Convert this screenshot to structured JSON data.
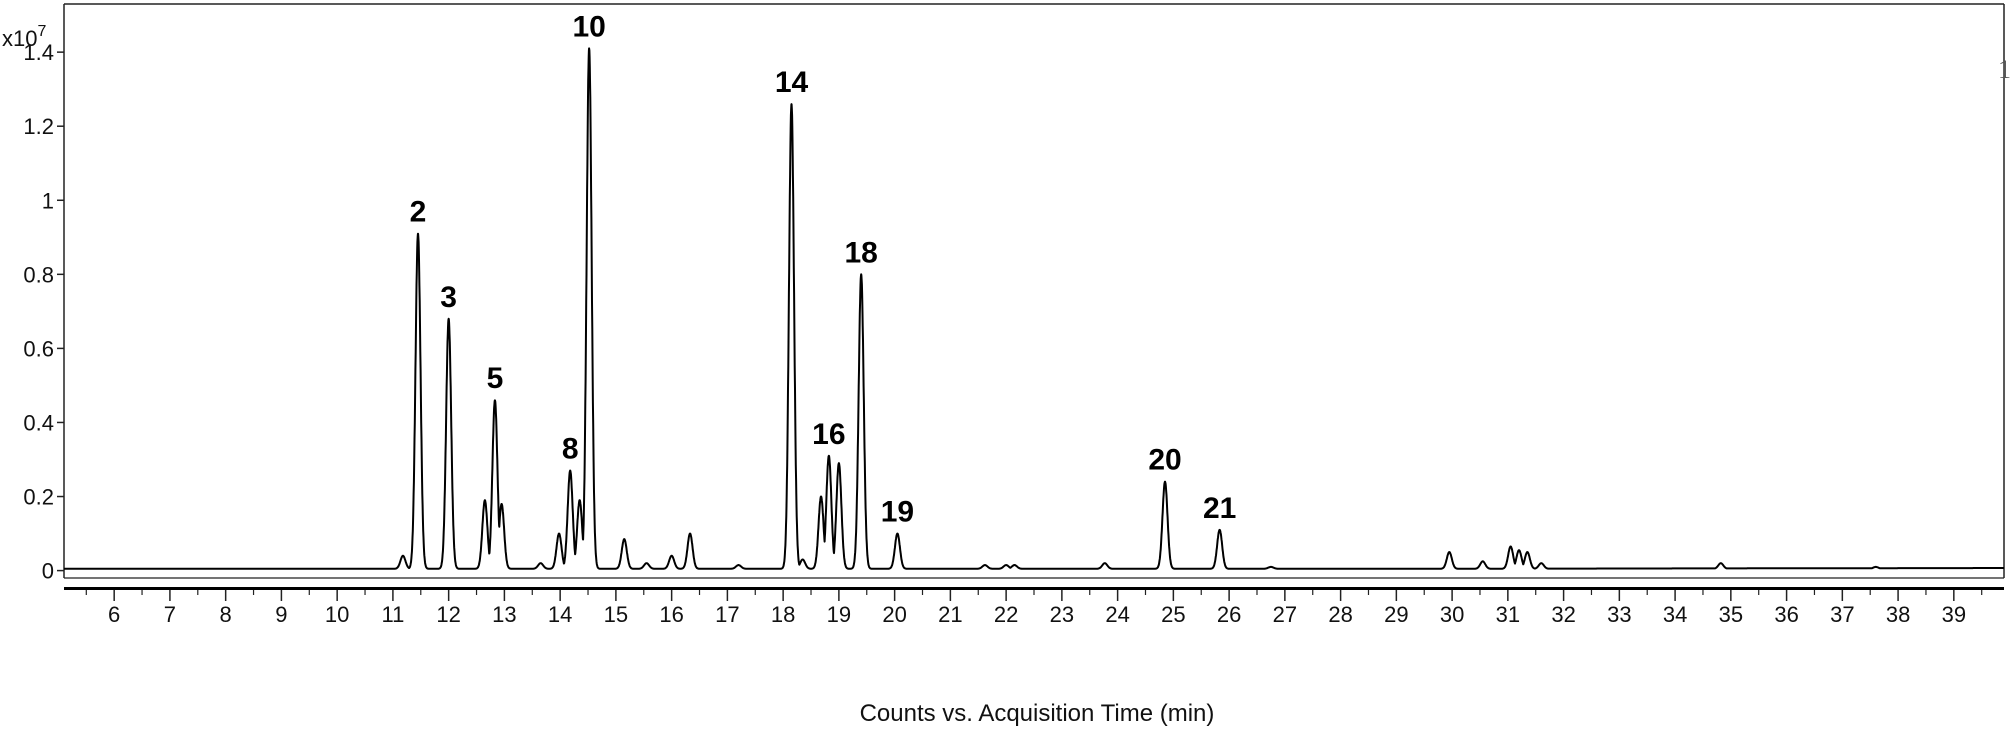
{
  "chart_data": {
    "type": "line",
    "title": "",
    "xlabel": "Counts vs. Acquisition Time (min)",
    "ylabel": "",
    "y_multiplier": "x10",
    "y_multiplier_exp": "7",
    "corner_mark": "1",
    "xlim": [
      5.1,
      39.9
    ],
    "ylim": [
      -0.02,
      1.53
    ],
    "x_ticks": [
      6,
      7,
      8,
      9,
      10,
      11,
      12,
      13,
      14,
      15,
      16,
      17,
      18,
      19,
      20,
      21,
      22,
      23,
      24,
      25,
      26,
      27,
      28,
      29,
      30,
      31,
      32,
      33,
      34,
      35,
      36,
      37,
      38,
      39
    ],
    "y_ticks": [
      {
        "value": 0,
        "label": "0"
      },
      {
        "value": 0.2,
        "label": "0.2"
      },
      {
        "value": 0.4,
        "label": "0.4"
      },
      {
        "value": 0.6,
        "label": "0.6"
      },
      {
        "value": 0.8,
        "label": "0.8"
      },
      {
        "value": 1.0,
        "label": "1"
      },
      {
        "value": 1.2,
        "label": "1.2"
      },
      {
        "value": 1.4,
        "label": "1.4"
      }
    ],
    "baseline": 0.005,
    "series": [
      {
        "peaks": [
          {
            "x": 11.18,
            "y": 0.04
          },
          {
            "x": 11.45,
            "y": 0.91,
            "label": "2"
          },
          {
            "x": 12.0,
            "y": 0.68,
            "label": "3"
          },
          {
            "x": 12.65,
            "y": 0.19
          },
          {
            "x": 12.83,
            "y": 0.46,
            "label": "5"
          },
          {
            "x": 12.95,
            "y": 0.18
          },
          {
            "x": 13.65,
            "y": 0.02
          },
          {
            "x": 13.98,
            "y": 0.1
          },
          {
            "x": 14.18,
            "y": 0.27,
            "label": "8"
          },
          {
            "x": 14.35,
            "y": 0.19
          },
          {
            "x": 14.52,
            "y": 1.41,
            "label": "10"
          },
          {
            "x": 15.15,
            "y": 0.085
          },
          {
            "x": 15.55,
            "y": 0.02
          },
          {
            "x": 16.0,
            "y": 0.04
          },
          {
            "x": 16.33,
            "y": 0.1
          },
          {
            "x": 17.2,
            "y": 0.015
          },
          {
            "x": 18.15,
            "y": 1.26,
            "label": "14"
          },
          {
            "x": 18.35,
            "y": 0.03
          },
          {
            "x": 18.68,
            "y": 0.2
          },
          {
            "x": 18.82,
            "y": 0.31,
            "label": "16"
          },
          {
            "x": 19.0,
            "y": 0.29
          },
          {
            "x": 19.4,
            "y": 0.8,
            "label": "18"
          },
          {
            "x": 20.05,
            "y": 0.1,
            "label": "19"
          },
          {
            "x": 21.62,
            "y": 0.015
          },
          {
            "x": 22.0,
            "y": 0.015
          },
          {
            "x": 22.15,
            "y": 0.015
          },
          {
            "x": 23.77,
            "y": 0.02
          },
          {
            "x": 24.85,
            "y": 0.24,
            "label": "20"
          },
          {
            "x": 25.83,
            "y": 0.11,
            "label": "21"
          },
          {
            "x": 26.75,
            "y": 0.01
          },
          {
            "x": 29.95,
            "y": 0.05
          },
          {
            "x": 30.55,
            "y": 0.025
          },
          {
            "x": 31.05,
            "y": 0.065
          },
          {
            "x": 31.2,
            "y": 0.055
          },
          {
            "x": 31.35,
            "y": 0.05
          },
          {
            "x": 31.6,
            "y": 0.02
          },
          {
            "x": 34.82,
            "y": 0.02
          },
          {
            "x": 37.6,
            "y": 0.01
          }
        ]
      }
    ]
  }
}
